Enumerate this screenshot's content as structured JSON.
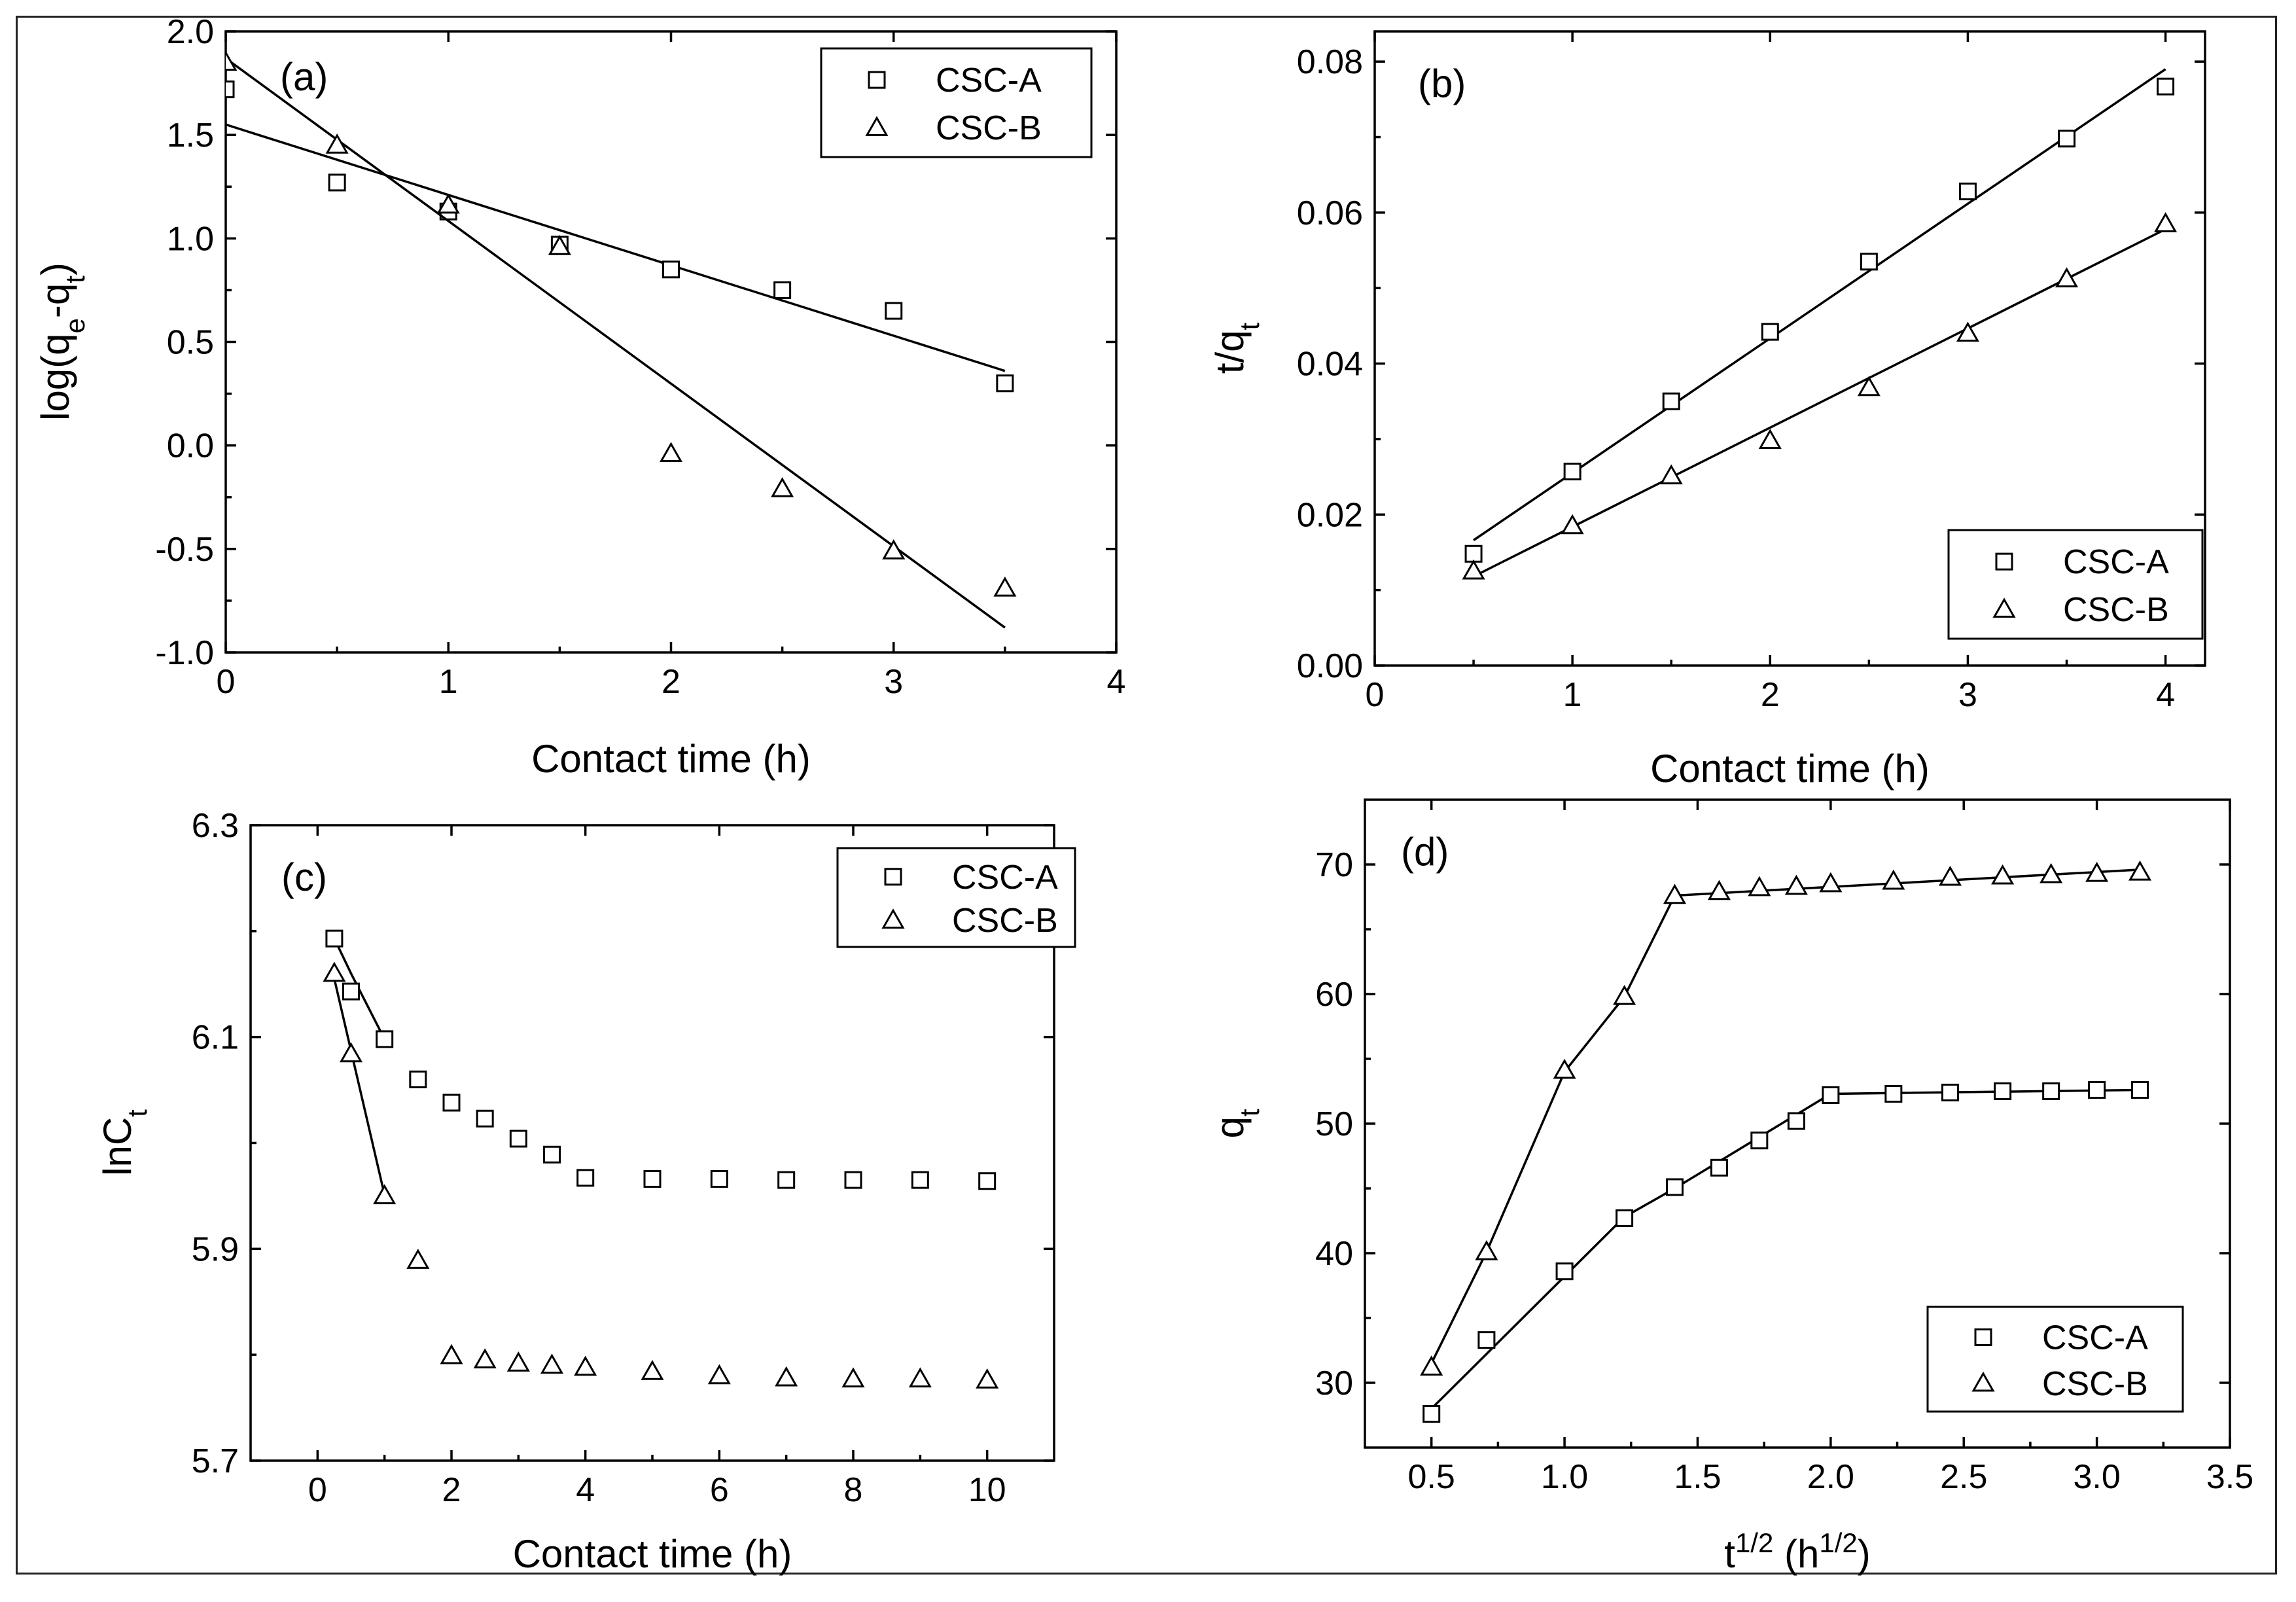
{
  "chart_data": [
    {
      "id": "a",
      "type": "scatter",
      "panel_label": "(a)",
      "xlabel": "Contact time (h)",
      "ylabel": "log(q_e-q_t)",
      "xlim": [
        0,
        4
      ],
      "ylim": [
        -1.0,
        2.0
      ],
      "xticks": [
        0,
        1,
        2,
        3,
        4
      ],
      "yticks": [
        -1.0,
        -0.5,
        0.0,
        0.5,
        1.0,
        1.5,
        2.0
      ],
      "xtick_labels": [
        "0",
        "1",
        "2",
        "3",
        "4"
      ],
      "ytick_labels": [
        "-1.0",
        "-0.5",
        "0.0",
        "0.5",
        "1.0",
        "1.5",
        "2.0"
      ],
      "legend_position": "top-right",
      "series": [
        {
          "name": "CSC-A",
          "marker": "square",
          "x": [
            0,
            0.5,
            1,
            1.5,
            2,
            2.5,
            3,
            3.5
          ],
          "y": [
            1.72,
            1.27,
            1.13,
            0.97,
            0.85,
            0.75,
            0.65,
            0.3
          ],
          "fit": {
            "x": [
              0,
              3.5
            ],
            "y": [
              1.55,
              0.36
            ]
          }
        },
        {
          "name": "CSC-B",
          "marker": "triangle",
          "x": [
            0,
            0.5,
            1,
            1.5,
            2,
            2.5,
            3,
            3.5
          ],
          "y": [
            1.85,
            1.45,
            1.16,
            0.96,
            -0.04,
            -0.21,
            -0.51,
            -0.69
          ],
          "fit": {
            "x": [
              0,
              3.5
            ],
            "y": [
              1.87,
              -0.88
            ]
          }
        }
      ]
    },
    {
      "id": "b",
      "type": "scatter",
      "panel_label": "(b)",
      "xlabel": "Contact time (h)",
      "ylabel": "t/q_t",
      "xlim": [
        0,
        4.2
      ],
      "ylim": [
        0,
        0.084
      ],
      "xticks": [
        0,
        1,
        2,
        3,
        4
      ],
      "yticks": [
        0,
        0.02,
        0.04,
        0.06,
        0.08
      ],
      "xtick_labels": [
        "0",
        "1",
        "2",
        "3",
        "4"
      ],
      "ytick_labels": [
        "0.00",
        "0.02",
        "0.04",
        "0.06",
        "0.08"
      ],
      "legend_position": "bottom-right",
      "series": [
        {
          "name": "CSC-A",
          "marker": "square",
          "x": [
            0.5,
            1,
            1.5,
            2,
            2.5,
            3,
            3.5,
            4
          ],
          "y": [
            0.0148,
            0.0257,
            0.035,
            0.0442,
            0.0535,
            0.0628,
            0.0698,
            0.0767
          ],
          "fit": {
            "x": [
              0.5,
              4
            ],
            "y": [
              0.0166,
              0.079
            ]
          }
        },
        {
          "name": "CSC-B",
          "marker": "triangle",
          "x": [
            0.5,
            1,
            1.5,
            2,
            2.5,
            3,
            3.5,
            4
          ],
          "y": [
            0.0125,
            0.0185,
            0.0251,
            0.0298,
            0.0368,
            0.044,
            0.0512,
            0.0585
          ],
          "fit": {
            "x": [
              0.5,
              4
            ],
            "y": [
              0.0118,
              0.0578
            ]
          }
        }
      ]
    },
    {
      "id": "c",
      "type": "scatter",
      "panel_label": "(c)",
      "xlabel": "Contact time (h)",
      "ylabel": "lnC_t",
      "xlim": [
        -1,
        11
      ],
      "ylim": [
        5.7,
        6.3
      ],
      "xticks": [
        0,
        2,
        4,
        6,
        8,
        10
      ],
      "yticks": [
        5.7,
        5.9,
        6.1,
        6.3
      ],
      "xtick_labels": [
        "0",
        "2",
        "4",
        "6",
        "8",
        "10"
      ],
      "ytick_labels": [
        "5.7",
        "5.9",
        "6.1",
        "6.3"
      ],
      "legend_position": "top-right",
      "series": [
        {
          "name": "CSC-A",
          "marker": "square",
          "x": [
            0.25,
            0.5,
            1,
            1.5,
            2,
            2.5,
            3,
            3.5,
            4,
            5,
            6,
            7,
            8,
            9,
            10
          ],
          "y": [
            6.193,
            6.143,
            6.098,
            6.06,
            6.038,
            6.023,
            6.004,
            5.989,
            5.967,
            5.966,
            5.966,
            5.965,
            5.965,
            5.965,
            5.964
          ],
          "fit": {
            "x": [
              0.25,
              0.5,
              1
            ],
            "y": [
              6.193,
              6.16,
              6.098
            ]
          }
        },
        {
          "name": "CSC-B",
          "marker": "triangle",
          "x": [
            0.25,
            0.5,
            1,
            1.5,
            2,
            2.5,
            3,
            3.5,
            4,
            5,
            6,
            7,
            8,
            9,
            10
          ],
          "y": [
            6.16,
            6.084,
            5.95,
            5.889,
            5.799,
            5.795,
            5.792,
            5.79,
            5.788,
            5.784,
            5.78,
            5.778,
            5.777,
            5.777,
            5.776
          ],
          "fit": {
            "x": [
              0.25,
              1
            ],
            "y": [
              6.155,
              5.951
            ]
          }
        }
      ]
    },
    {
      "id": "d",
      "type": "scatter",
      "panel_label": "(d)",
      "xlabel": "t^1/2 (h^1/2)",
      "ylabel": "q_t",
      "xlim": [
        0.25,
        3.5
      ],
      "ylim": [
        25,
        75
      ],
      "xticks": [
        0.5,
        1.0,
        1.5,
        2.0,
        2.5,
        3.0,
        3.5
      ],
      "yticks": [
        30,
        40,
        50,
        60,
        70
      ],
      "xtick_labels": [
        "0.5",
        "1.0",
        "1.5",
        "2.0",
        "2.5",
        "3.0",
        "3.5"
      ],
      "ytick_labels": [
        "30",
        "40",
        "50",
        "60",
        "70"
      ],
      "legend_position": "bottom-right",
      "series": [
        {
          "name": "CSC-A",
          "marker": "square",
          "x": [
            0.5,
            0.707,
            1.0,
            1.225,
            1.414,
            1.581,
            1.732,
            1.871,
            2.0,
            2.236,
            2.449,
            2.646,
            2.828,
            3.0,
            3.162
          ],
          "y": [
            27.6,
            33.3,
            38.6,
            42.7,
            45.1,
            46.6,
            48.7,
            50.2,
            52.2,
            52.3,
            52.4,
            52.5,
            52.5,
            52.6,
            52.6
          ],
          "fit": {
            "x": [
              0.5,
              1.225,
              1.414,
              2.0,
              3.162
            ],
            "y": [
              28.0,
              42.8,
              45.0,
              52.3,
              52.6
            ]
          }
        },
        {
          "name": "CSC-B",
          "marker": "triangle",
          "x": [
            0.5,
            0.707,
            1.0,
            1.225,
            1.414,
            1.581,
            1.732,
            1.871,
            2.0,
            2.236,
            2.449,
            2.646,
            2.828,
            3.0,
            3.162
          ],
          "y": [
            31.2,
            40.1,
            54.1,
            59.8,
            67.6,
            67.9,
            68.2,
            68.3,
            68.5,
            68.7,
            69.0,
            69.1,
            69.2,
            69.3,
            69.4
          ],
          "fit": {
            "x": [
              0.5,
              0.707,
              1.0,
              1.225,
              1.414,
              3.162
            ],
            "y": [
              31.5,
              40.1,
              54.0,
              59.8,
              67.6,
              69.6
            ]
          }
        }
      ]
    }
  ]
}
